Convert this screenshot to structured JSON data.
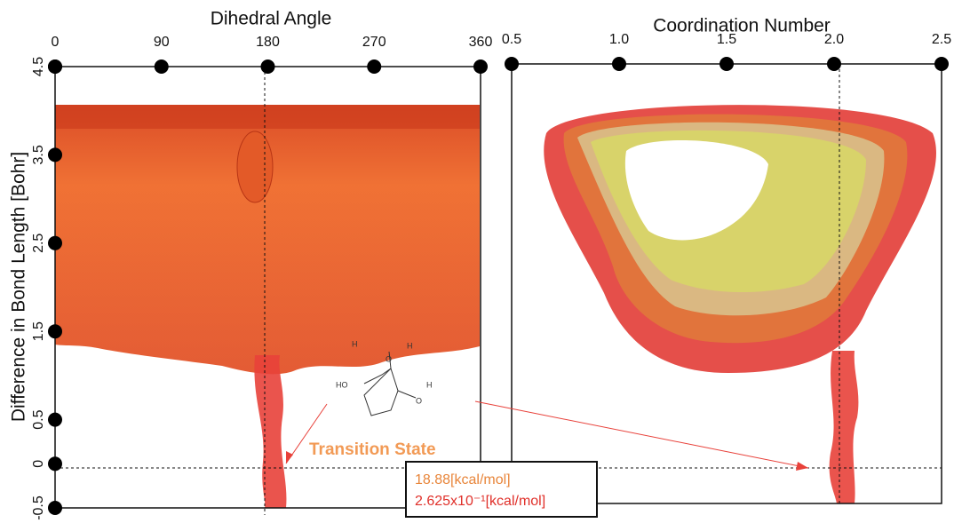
{
  "chart_data": [
    {
      "type": "surface",
      "title": "Dihedral Angle",
      "y_label": "Difference in Bond Length [Bohr]",
      "xlim": [
        0,
        360
      ],
      "xticks": [
        0,
        90,
        180,
        270,
        360
      ],
      "ylim": [
        -0.5,
        4.5
      ],
      "yticks": [
        -0.5,
        0,
        0.5,
        1.5,
        2.5,
        3.5,
        4.5
      ]
    },
    {
      "type": "surface",
      "title": "Coordination Number",
      "xlim": [
        0.5,
        2.5
      ],
      "xticks": [
        0.5,
        {
          "value": 1,
          "label": "1.0"
        },
        1.5,
        {
          "value": 2,
          "label": "2.0"
        },
        2.5
      ]
    }
  ],
  "annotations": {
    "transition_state": "Transition State",
    "energy": "18.88[kcal/mol]",
    "error": "2.625x10⁻¹[kcal/mol]",
    "molecule_labels": [
      "H",
      "O",
      "H",
      "HO",
      "O",
      "H"
    ]
  }
}
